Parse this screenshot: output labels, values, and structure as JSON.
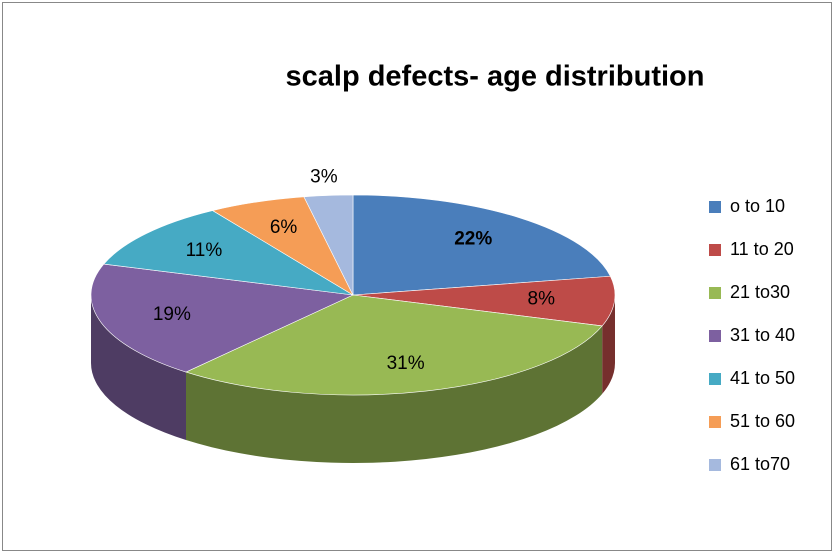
{
  "chart_data": {
    "type": "pie",
    "title": "scalp defects- age distribution",
    "categories": [
      "o to 10",
      "11 to 20",
      "21 to30",
      "31 to 40",
      "41 to 50",
      "51 to 60",
      "61 to70"
    ],
    "values": [
      22,
      8,
      31,
      19,
      11,
      6,
      3
    ],
    "value_labels": [
      "22%",
      "8%",
      "31%",
      "19%",
      "11%",
      "6%",
      "3%"
    ],
    "colors": [
      "#4a7ebb",
      "#be4b48",
      "#98b954",
      "#7d60a0",
      "#46aac4",
      "#f59d56",
      "#a5b9de"
    ],
    "legend": "right"
  }
}
